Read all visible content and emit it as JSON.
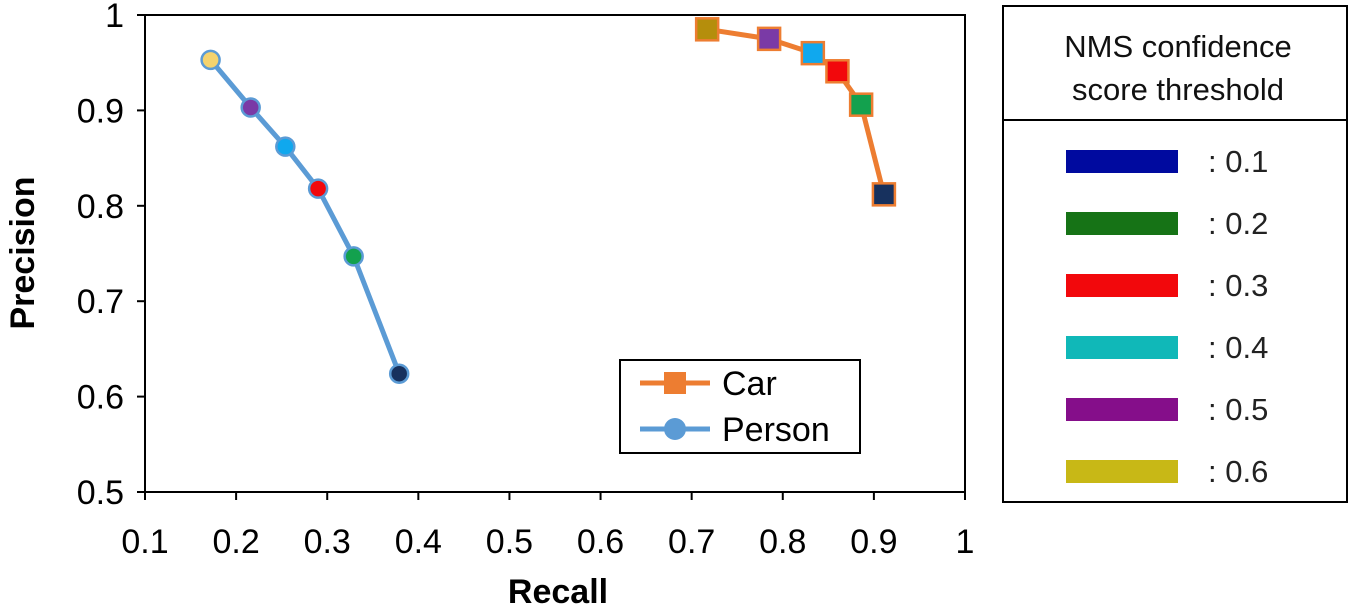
{
  "chart_data": {
    "type": "line",
    "xlabel": "Recall",
    "ylabel": "Precision",
    "xlim": [
      0.1,
      1
    ],
    "ylim": [
      0.5,
      1
    ],
    "x_ticks": [
      "0.1",
      "0.2",
      "0.3",
      "0.4",
      "0.5",
      "0.6",
      "0.7",
      "0.8",
      "0.9",
      "1"
    ],
    "y_ticks": [
      "0.5",
      "0.6",
      "0.7",
      "0.8",
      "0.9",
      "1"
    ],
    "grid": false,
    "legend_position": "bottom-center",
    "series": [
      {
        "name": "Car",
        "color": "#ED7D31",
        "marker": "square",
        "points": [
          {
            "x": 0.717,
            "y": 0.985,
            "threshold": "0.6"
          },
          {
            "x": 0.785,
            "y": 0.975,
            "threshold": "0.5"
          },
          {
            "x": 0.833,
            "y": 0.96,
            "threshold": "0.4"
          },
          {
            "x": 0.86,
            "y": 0.941,
            "threshold": "0.3"
          },
          {
            "x": 0.886,
            "y": 0.906,
            "threshold": "0.2"
          },
          {
            "x": 0.911,
            "y": 0.812,
            "threshold": "0.1"
          }
        ]
      },
      {
        "name": "Person",
        "color": "#5B9BD5",
        "marker": "circle",
        "points": [
          {
            "x": 0.172,
            "y": 0.953,
            "threshold": "0.6"
          },
          {
            "x": 0.216,
            "y": 0.903,
            "threshold": "0.5"
          },
          {
            "x": 0.254,
            "y": 0.862,
            "threshold": "0.4"
          },
          {
            "x": 0.29,
            "y": 0.818,
            "threshold": "0.3"
          },
          {
            "x": 0.329,
            "y": 0.747,
            "threshold": "0.2"
          },
          {
            "x": 0.379,
            "y": 0.624,
            "threshold": "0.1"
          }
        ]
      }
    ],
    "threshold_legend": {
      "title_lines": [
        "NMS confidence",
        "score threshold"
      ],
      "items": [
        {
          "label": ": 0.1",
          "threshold": "0.1",
          "color": "#000A9F"
        },
        {
          "label": ": 0.2",
          "threshold": "0.2",
          "color": "#167316"
        },
        {
          "label": ": 0.3",
          "threshold": "0.3",
          "color": "#F2080C"
        },
        {
          "label": ": 0.4",
          "threshold": "0.4",
          "color": "#10B8B8"
        },
        {
          "label": ": 0.5",
          "threshold": "0.5",
          "color": "#850E8A"
        },
        {
          "label": ": 0.6",
          "threshold": "0.6",
          "color": "#C8B816"
        }
      ]
    },
    "marker_colors": {
      "Car": {
        "0.1": "#17315E",
        "0.2": "#13A14E",
        "0.3": "#F2080C",
        "0.4": "#10A8EE",
        "0.5": "#7A3AA6",
        "0.6": "#B58E0C"
      },
      "Person": {
        "0.1": "#17315E",
        "0.2": "#13A14E",
        "0.3": "#F2080C",
        "0.4": "#10A8EE",
        "0.5": "#7A3AA6",
        "0.6": "#F4D36E"
      }
    }
  }
}
